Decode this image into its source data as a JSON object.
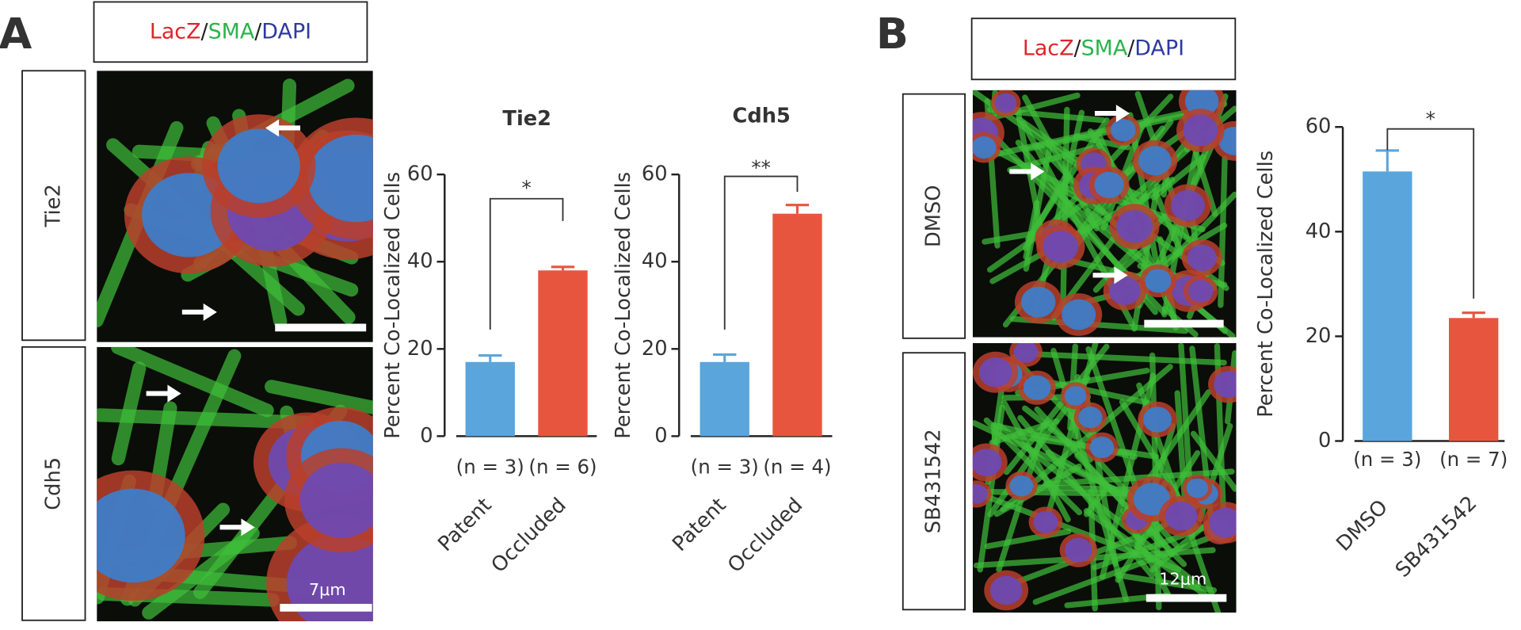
{
  "panels": [
    {
      "label": "A",
      "legend": [
        {
          "text": "LacZ",
          "color": "#e0242b"
        },
        {
          "text": "/"
        },
        {
          "text": "SMA",
          "color": "#2bb34b"
        },
        {
          "text": "/"
        },
        {
          "text": "DAPI",
          "color": "#2e3a9e"
        }
      ],
      "rows": [
        {
          "label": "Tie2"
        },
        {
          "label": "Cdh5",
          "scale_bar": "7μm"
        }
      ]
    },
    {
      "label": "B",
      "legend": [
        {
          "text": "LacZ",
          "color": "#e0242b"
        },
        {
          "text": "/"
        },
        {
          "text": "SMA",
          "color": "#2bb34b"
        },
        {
          "text": "/"
        },
        {
          "text": "DAPI",
          "color": "#2e3a9e"
        }
      ],
      "rows": [
        {
          "label": "DMSO"
        },
        {
          "label": "SB431542",
          "scale_bar": "12μm"
        }
      ]
    }
  ],
  "chart_data": [
    {
      "type": "bar",
      "title": "Tie2",
      "y_label": "Percent Co-Localized Cells",
      "categories": [
        "Patent",
        "Occluded"
      ],
      "n_labels": [
        "(n = 3)",
        "(n = 6)"
      ],
      "values": [
        17,
        38
      ],
      "errors": [
        1.5,
        0.8
      ],
      "colors": [
        "#5aa5dc",
        "#e8553f"
      ],
      "ylim": [
        0,
        60
      ],
      "yticks": [
        0,
        20,
        40,
        60
      ],
      "significance": "*"
    },
    {
      "type": "bar",
      "title": "Cdh5",
      "y_label": "Percent Co-Localized Cells",
      "categories": [
        "Patent",
        "Occluded"
      ],
      "n_labels": [
        "(n = 3)",
        "(n = 4)"
      ],
      "values": [
        17,
        51
      ],
      "errors": [
        1.7,
        2
      ],
      "colors": [
        "#5aa5dc",
        "#e8553f"
      ],
      "ylim": [
        0,
        60
      ],
      "yticks": [
        0,
        20,
        40,
        60
      ],
      "significance": "**"
    },
    {
      "type": "bar",
      "y_label": "Percent Co-Localized Cells",
      "categories": [
        "DMSO",
        "SB431542"
      ],
      "n_labels": [
        "(n = 3)",
        "(n = 7)"
      ],
      "values": [
        51.5,
        23.5
      ],
      "errors": [
        4,
        1
      ],
      "colors": [
        "#5aa5dc",
        "#e8553f"
      ],
      "ylim": [
        0,
        60
      ],
      "yticks": [
        0,
        20,
        40,
        60
      ],
      "significance": "*"
    }
  ]
}
